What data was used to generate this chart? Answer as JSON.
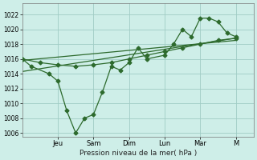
{
  "bg_color": "#ceeee8",
  "grid_color": "#a0ccc5",
  "line_color": "#2d6a2d",
  "xlabel": "Pression niveau de la mer( hPa )",
  "ylim": [
    1005.5,
    1023.5
  ],
  "yticks": [
    1006,
    1008,
    1010,
    1012,
    1014,
    1016,
    1018,
    1020,
    1022
  ],
  "xlabels": [
    "Jeu",
    "Sam",
    "Dim",
    "Lun",
    "Mar",
    "M"
  ],
  "xtick_positions": [
    2,
    4,
    6,
    8,
    10,
    12
  ],
  "xlim": [
    0,
    13
  ],
  "series1_x": [
    0,
    0.5,
    1.5,
    2,
    2.5,
    3,
    3.5,
    4,
    4.5,
    5,
    5.5,
    6,
    6.5,
    7,
    8,
    8.5,
    9,
    9.5,
    10,
    10.5,
    11,
    11.5,
    12
  ],
  "series1_y": [
    1016,
    1015,
    1014,
    1013,
    1009,
    1006,
    1008,
    1008.5,
    1011.5,
    1015,
    1014.5,
    1015.5,
    1017.5,
    1016,
    1016.5,
    1018,
    1020,
    1019,
    1021.5,
    1021.5,
    1021,
    1019.5,
    1019
  ],
  "series2_x": [
    0,
    1,
    2,
    3,
    4,
    5,
    6,
    7,
    8,
    9,
    10,
    11,
    12
  ],
  "series2_y": [
    1016,
    1015.5,
    1015.2,
    1015.0,
    1015.2,
    1015.5,
    1016.0,
    1016.5,
    1017.0,
    1017.5,
    1018.0,
    1018.5,
    1018.8
  ],
  "trend_x": [
    0,
    12
  ],
  "trend_y": [
    1014.3,
    1018.8
  ],
  "trend2_x": [
    0,
    12
  ],
  "trend2_y": [
    1015.8,
    1018.5
  ],
  "marker_size": 2.5,
  "linewidth": 0.9
}
